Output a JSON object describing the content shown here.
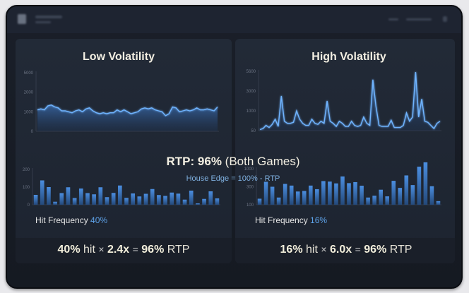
{
  "colors": {
    "accent": "#5ea3ea",
    "line": "#6fb4ff",
    "bar": "#3f7fd0",
    "text": "#f3efe2"
  },
  "left": {
    "title": "Low Volatility",
    "hit_label": "Hit Frequency",
    "hit_value": "40%",
    "formula": {
      "hit": "40%",
      "hit_word": "hit",
      "times": "×",
      "mult": "2.4",
      "x": "x",
      "eq": "=",
      "rtp": "96%",
      "rtp_word": "RTP"
    }
  },
  "right": {
    "title": "High Volatility",
    "hit_label": "Hit Frequency",
    "hit_value": "16%",
    "formula": {
      "hit": "16%",
      "hit_word": "hit",
      "times": "×",
      "mult": "6.0",
      "x": "x",
      "eq": "=",
      "rtp": "96%",
      "rtp_word": "RTP"
    }
  },
  "center": {
    "rtp_label": "RTP:",
    "rtp_value": "96%",
    "rtp_note": "(Both Games)",
    "house_edge": "House Edge = 100% - RTP"
  },
  "chart_data": [
    {
      "type": "area",
      "panel": "Low Volatility",
      "yticks": [
        0,
        1000,
        2000,
        5000
      ],
      "values": [
        1100,
        1150,
        1100,
        1300,
        1350,
        1250,
        1200,
        1050,
        1050,
        1000,
        950,
        1050,
        1100,
        1000,
        1150,
        1200,
        1050,
        950,
        900,
        950,
        900,
        950,
        950,
        1100,
        1000,
        1100,
        1000,
        900,
        950,
        1000,
        1150,
        1200,
        1150,
        1200,
        1100,
        1050,
        1000,
        800,
        900,
        1250,
        1200,
        1000,
        1050,
        1100,
        1050,
        1100,
        1200,
        1100,
        1100,
        1150,
        1100,
        1050,
        1250
      ]
    },
    {
      "type": "area",
      "panel": "High Volatility",
      "yticks": [
        50,
        1000,
        3000,
        5600
      ],
      "values": [
        100,
        150,
        300,
        200,
        350,
        600,
        250,
        2500,
        500,
        400,
        400,
        450,
        1000,
        600,
        400,
        300,
        300,
        600,
        400,
        350,
        500,
        400,
        2000,
        500,
        400,
        250,
        500,
        400,
        250,
        250,
        500,
        300,
        250,
        300,
        700,
        400,
        300,
        4500,
        1500,
        300,
        250,
        250,
        250,
        550,
        200,
        200,
        200,
        300,
        900,
        500,
        700,
        5500,
        700,
        2200,
        500,
        450,
        300,
        150,
        400,
        500
      ]
    },
    {
      "type": "bar",
      "panel": "Low Volatility",
      "yticks": [
        0,
        100,
        200
      ],
      "values": [
        56,
        138,
        100,
        17,
        66,
        99,
        38,
        92,
        66,
        59,
        99,
        43,
        67,
        109,
        39,
        64,
        47,
        62,
        89,
        55,
        50,
        69,
        63,
        29,
        80,
        8,
        33,
        76,
        36
      ]
    },
    {
      "type": "bar",
      "panel": "High Volatility",
      "yticks": [
        100,
        300,
        1000
      ],
      "values": [
        167,
        494,
        300,
        180,
        410,
        345,
        247,
        253,
        345,
        273,
        520,
        500,
        430,
        700,
        440,
        480,
        340,
        180,
        200,
        267,
        193,
        530,
        287,
        740,
        365,
        1080,
        1250,
        320,
        140
      ]
    }
  ]
}
